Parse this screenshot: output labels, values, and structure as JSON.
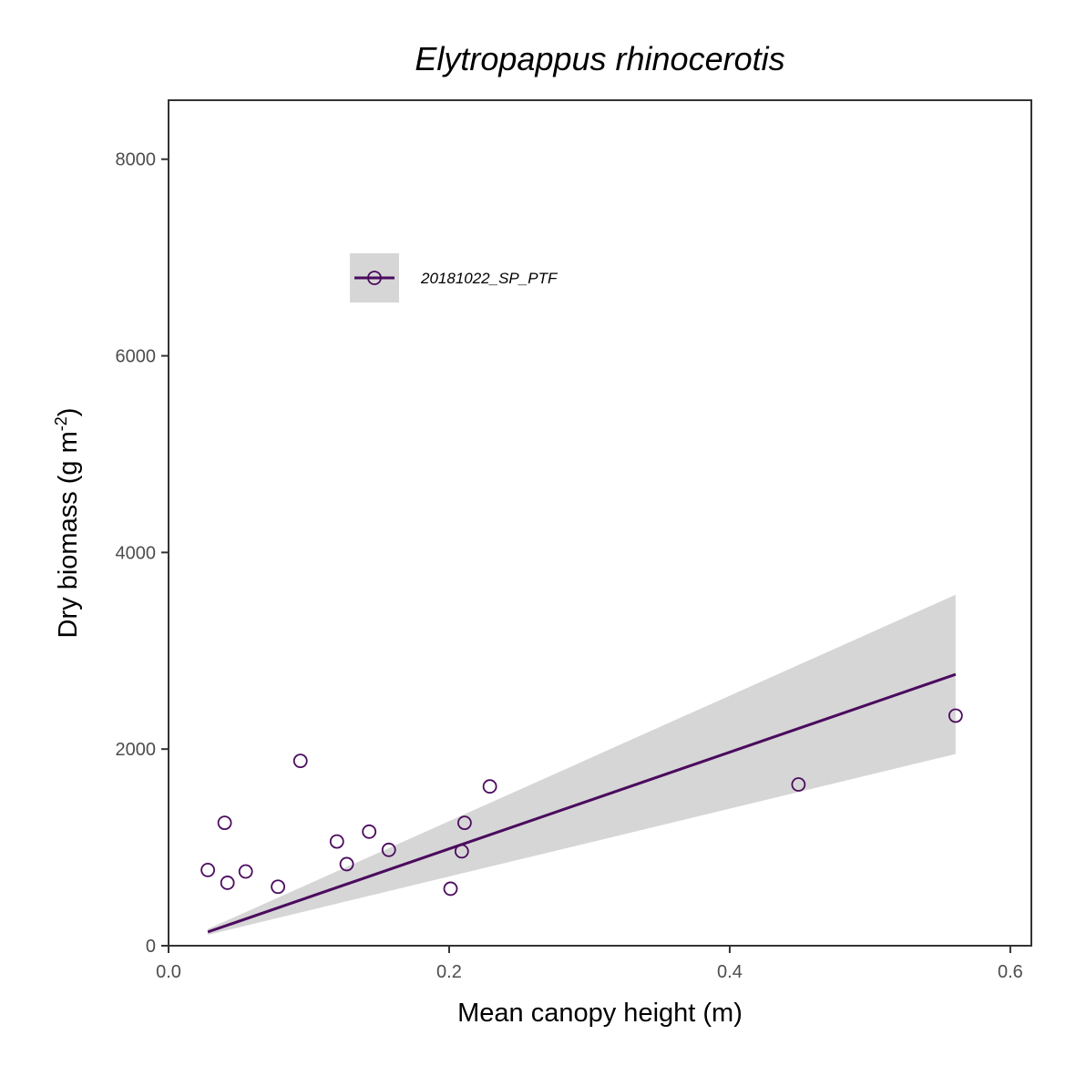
{
  "chart_data": {
    "type": "scatter",
    "title": "Elytropappus rhinocerotis",
    "xlabel": "Mean canopy height (m)",
    "ylabel_main": "Dry biomass (g m",
    "ylabel_sup": "-2",
    "ylabel_close": ")",
    "xlim": [
      0,
      0.615
    ],
    "ylim": [
      0,
      8600
    ],
    "x_ticks": [
      0,
      0.2,
      0.4,
      0.6
    ],
    "x_tick_labels": [
      "0.0",
      "0.2",
      "0.4",
      "0.6"
    ],
    "y_ticks": [
      0,
      2000,
      4000,
      6000,
      8000
    ],
    "y_tick_labels": [
      "0",
      "2000",
      "4000",
      "6000",
      "8000"
    ],
    "legend_position": "top-left",
    "series": [
      {
        "name": "20181022_SP_PTF",
        "color": "#4b0b5e",
        "marker": "open-circle",
        "points": [
          {
            "x": 0.028,
            "y": 770
          },
          {
            "x": 0.04,
            "y": 1250
          },
          {
            "x": 0.042,
            "y": 640
          },
          {
            "x": 0.055,
            "y": 755
          },
          {
            "x": 0.078,
            "y": 600
          },
          {
            "x": 0.094,
            "y": 1880
          },
          {
            "x": 0.12,
            "y": 1060
          },
          {
            "x": 0.127,
            "y": 830
          },
          {
            "x": 0.143,
            "y": 1160
          },
          {
            "x": 0.157,
            "y": 975
          },
          {
            "x": 0.201,
            "y": 580
          },
          {
            "x": 0.209,
            "y": 960
          },
          {
            "x": 0.211,
            "y": 1250
          },
          {
            "x": 0.229,
            "y": 1620
          },
          {
            "x": 0.449,
            "y": 1640
          },
          {
            "x": 0.561,
            "y": 2340
          }
        ],
        "fit_line": {
          "x": [
            0.028,
            0.561
          ],
          "y": [
            140,
            2760
          ]
        },
        "confidence_band": {
          "x": [
            0.028,
            0.561
          ],
          "lower": [
            110,
            1950
          ],
          "upper": [
            170,
            3570
          ]
        }
      }
    ],
    "colors": {
      "band": "#d6d6d6",
      "axis": "#333333"
    }
  }
}
